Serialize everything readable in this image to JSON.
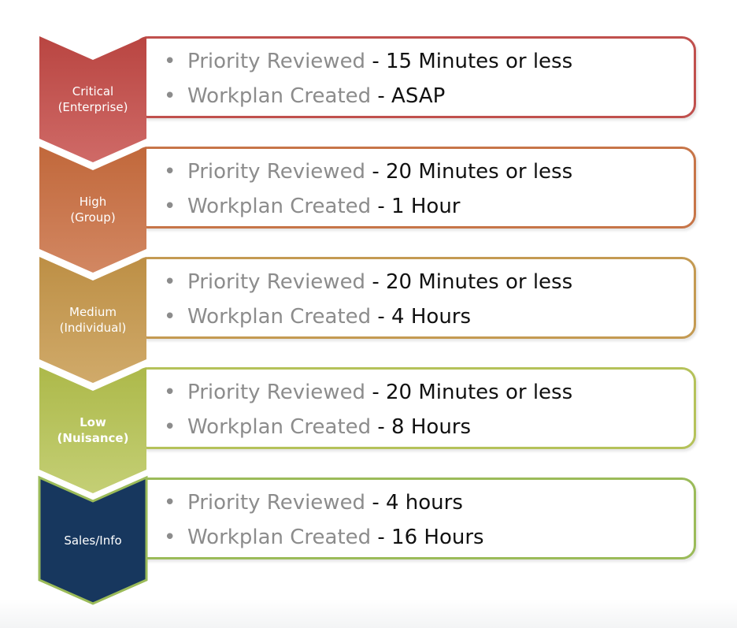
{
  "tiers": [
    {
      "title": "Critical",
      "subtitle": "(Enterprise)",
      "color": "#c0504d",
      "items": [
        {
          "label": "Priority Reviewed",
          "value": " - 15 Minutes or less"
        },
        {
          "label": "Workplan Created",
          "value": " - ASAP"
        }
      ]
    },
    {
      "title": "High",
      "subtitle": "(Group)",
      "color": "#c77548",
      "items": [
        {
          "label": "Priority Reviewed",
          "value": " - 20 Minutes or less"
        },
        {
          "label": "Workplan Created",
          "value": " - 1 Hour"
        }
      ]
    },
    {
      "title": "Medium",
      "subtitle": "(Individual)",
      "color": "#c49a52",
      "items": [
        {
          "label": "Priority Reviewed",
          "value": " - 20 Minutes or less"
        },
        {
          "label": "Workplan Created",
          "value": " - 4 Hours"
        }
      ]
    },
    {
      "title": "Low",
      "subtitle": "(Nuisance)",
      "color": "#b5c25a",
      "items": [
        {
          "label": "Priority Reviewed",
          "value": " - 20 Minutes or less"
        },
        {
          "label": "Workplan Created",
          "value": " - 8 Hours"
        }
      ]
    },
    {
      "title": "Sales/Info",
      "subtitle": "",
      "color": "#17375e",
      "border_color": "#9bbb59",
      "items": [
        {
          "label": "Priority Reviewed",
          "value": " - 4 hours"
        },
        {
          "label": "Workplan Created",
          "value": " - 16 Hours"
        }
      ]
    }
  ]
}
